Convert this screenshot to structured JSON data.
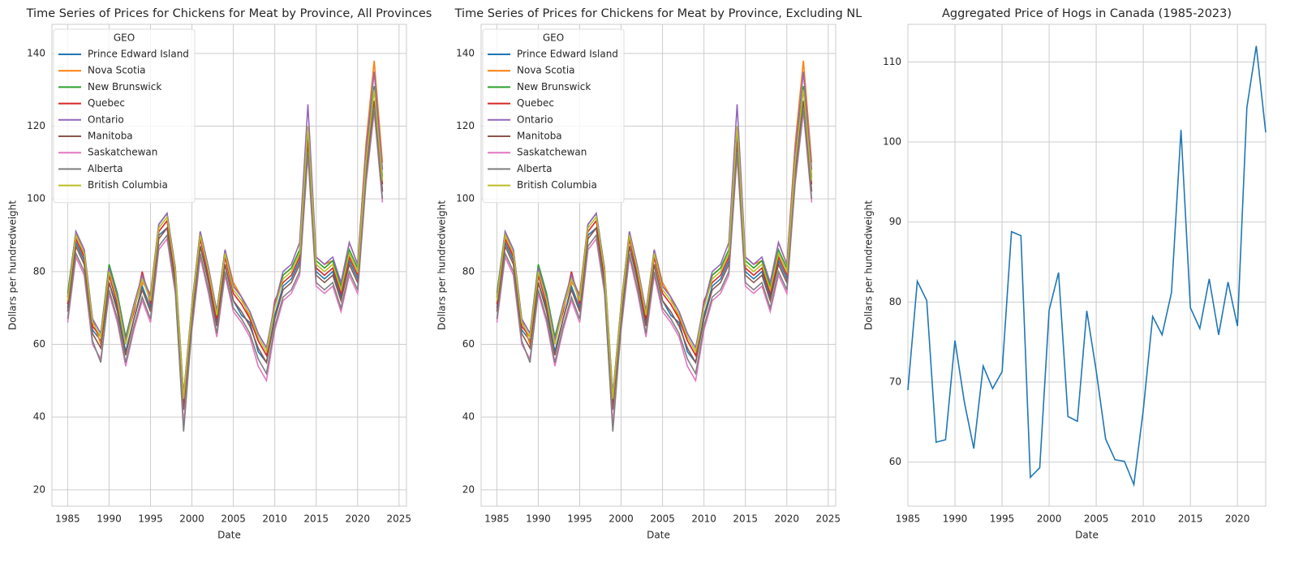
{
  "chart_data": [
    {
      "type": "line",
      "title": "Time Series of Prices for Chickens for Meat by Province, All Provinces",
      "x_label": "Date",
      "y_label": "Dollars per hundredweight",
      "legend_title": "GEO",
      "legend": "upper left",
      "grid": true,
      "x": [
        1985,
        1986,
        1987,
        1988,
        1989,
        1990,
        1991,
        1992,
        1993,
        1994,
        1995,
        1996,
        1997,
        1998,
        1999,
        2000,
        2001,
        2002,
        2003,
        2004,
        2005,
        2006,
        2007,
        2008,
        2009,
        2010,
        2011,
        2012,
        2013,
        2014,
        2015,
        2016,
        2017,
        2018,
        2019,
        2020,
        2021,
        2022,
        2023
      ],
      "xlim": [
        1983.1,
        2025.9
      ],
      "xticks": [
        1985,
        1990,
        1995,
        2000,
        2005,
        2010,
        2015,
        2020,
        2025
      ],
      "ylim": [
        15.5,
        148
      ],
      "yticks": [
        20,
        40,
        60,
        80,
        100,
        120,
        140
      ],
      "series": [
        {
          "name": "Prince Edward Island",
          "color": "#1f77b4",
          "values": [
            70,
            88,
            83,
            64,
            61,
            77,
            70,
            58,
            67,
            76,
            70,
            90,
            92,
            78,
            42,
            68,
            87,
            78,
            66,
            82,
            72,
            68,
            66,
            58,
            55,
            68,
            76,
            78,
            83,
            115,
            80,
            78,
            80,
            73,
            83,
            78,
            106,
            125,
            102
          ]
        },
        {
          "name": "Nova Scotia",
          "color": "#ff7f0e",
          "values": [
            73,
            91,
            84,
            67,
            60,
            79,
            73,
            61,
            70,
            77,
            74,
            93,
            96,
            79,
            44,
            71,
            91,
            81,
            69,
            86,
            77,
            73,
            67,
            61,
            57,
            71,
            79,
            81,
            86,
            118,
            84,
            82,
            83,
            77,
            88,
            82,
            115,
            138,
            110
          ]
        },
        {
          "name": "New Brunswick",
          "color": "#2ca02c",
          "values": [
            74,
            91,
            86,
            67,
            63,
            82,
            74,
            62,
            71,
            79,
            73,
            93,
            96,
            81,
            46,
            71,
            91,
            81,
            69,
            86,
            76,
            73,
            69,
            63,
            59,
            71,
            79,
            81,
            86,
            117,
            83,
            81,
            83,
            76,
            86,
            81,
            111,
            131,
            106
          ]
        },
        {
          "name": "Quebec",
          "color": "#d62728",
          "values": [
            71,
            89,
            84,
            65,
            62,
            79,
            71,
            61,
            69,
            80,
            71,
            91,
            94,
            79,
            44,
            69,
            89,
            79,
            67,
            84,
            74,
            71,
            67,
            61,
            57,
            72,
            77,
            79,
            84,
            116,
            81,
            79,
            81,
            74,
            84,
            79,
            112,
            127,
            104
          ]
        },
        {
          "name": "Ontario",
          "color": "#9467bd",
          "values": [
            73,
            91,
            86,
            67,
            63,
            81,
            73,
            61,
            71,
            79,
            73,
            93,
            96,
            81,
            46,
            71,
            91,
            81,
            69,
            86,
            76,
            73,
            69,
            63,
            59,
            71,
            80,
            82,
            88,
            126,
            84,
            82,
            84,
            77,
            88,
            82,
            113,
            135,
            108
          ]
        },
        {
          "name": "Manitoba",
          "color": "#8c564b",
          "values": [
            69,
            87,
            82,
            63,
            59,
            77,
            69,
            57,
            67,
            75,
            69,
            89,
            92,
            77,
            42,
            67,
            87,
            77,
            65,
            82,
            72,
            69,
            65,
            59,
            55,
            67,
            75,
            77,
            82,
            116,
            79,
            77,
            79,
            72,
            82,
            77,
            107,
            127,
            102
          ]
        },
        {
          "name": "Saskatchewan",
          "color": "#e377c2",
          "values": [
            66,
            84,
            79,
            60,
            56,
            74,
            66,
            54,
            64,
            72,
            66,
            86,
            89,
            74,
            38,
            64,
            84,
            74,
            62,
            79,
            69,
            66,
            62,
            54,
            50,
            64,
            72,
            74,
            79,
            112,
            76,
            74,
            76,
            69,
            79,
            74,
            104,
            124,
            99
          ]
        },
        {
          "name": "Alberta",
          "color": "#7f7f7f",
          "values": [
            67,
            85,
            80,
            61,
            55,
            75,
            67,
            55,
            65,
            73,
            67,
            87,
            90,
            75,
            36,
            65,
            85,
            75,
            63,
            80,
            70,
            67,
            63,
            56,
            52,
            65,
            73,
            75,
            80,
            113,
            77,
            75,
            77,
            70,
            80,
            75,
            105,
            125,
            100
          ]
        },
        {
          "name": "British Columbia",
          "color": "#bcbd22",
          "values": [
            72,
            90,
            85,
            66,
            62,
            80,
            72,
            60,
            70,
            78,
            72,
            92,
            95,
            80,
            45,
            70,
            90,
            80,
            68,
            85,
            75,
            72,
            68,
            62,
            58,
            70,
            78,
            80,
            85,
            120,
            82,
            80,
            82,
            75,
            85,
            80,
            110,
            130,
            105
          ]
        }
      ]
    },
    {
      "type": "line",
      "title": "Time Series of Prices for Chickens for Meat by Province, Excluding NL",
      "x_label": "Date",
      "y_label": "Dollars per hundredweight",
      "legend_title": "GEO",
      "legend": "upper left",
      "grid": true,
      "x": [
        1985,
        1986,
        1987,
        1988,
        1989,
        1990,
        1991,
        1992,
        1993,
        1994,
        1995,
        1996,
        1997,
        1998,
        1999,
        2000,
        2001,
        2002,
        2003,
        2004,
        2005,
        2006,
        2007,
        2008,
        2009,
        2010,
        2011,
        2012,
        2013,
        2014,
        2015,
        2016,
        2017,
        2018,
        2019,
        2020,
        2021,
        2022,
        2023
      ],
      "xlim": [
        1983.1,
        2025.9
      ],
      "xticks": [
        1985,
        1990,
        1995,
        2000,
        2005,
        2010,
        2015,
        2020,
        2025
      ],
      "ylim": [
        15.5,
        148
      ],
      "yticks": [
        20,
        40,
        60,
        80,
        100,
        120,
        140
      ],
      "series": [
        {
          "name": "Prince Edward Island",
          "color": "#1f77b4",
          "values": [
            70,
            88,
            83,
            64,
            61,
            77,
            70,
            58,
            67,
            76,
            70,
            90,
            92,
            78,
            42,
            68,
            87,
            78,
            66,
            82,
            72,
            68,
            66,
            58,
            55,
            68,
            76,
            78,
            83,
            115,
            80,
            78,
            80,
            73,
            83,
            78,
            106,
            125,
            102
          ]
        },
        {
          "name": "Nova Scotia",
          "color": "#ff7f0e",
          "values": [
            73,
            91,
            84,
            67,
            60,
            79,
            73,
            61,
            70,
            77,
            74,
            93,
            96,
            79,
            44,
            71,
            91,
            81,
            69,
            86,
            77,
            73,
            67,
            61,
            57,
            71,
            79,
            81,
            86,
            118,
            84,
            82,
            83,
            77,
            88,
            82,
            115,
            138,
            110
          ]
        },
        {
          "name": "New Brunswick",
          "color": "#2ca02c",
          "values": [
            74,
            91,
            86,
            67,
            63,
            82,
            74,
            62,
            71,
            79,
            73,
            93,
            96,
            81,
            46,
            71,
            91,
            81,
            69,
            86,
            76,
            73,
            69,
            63,
            59,
            71,
            79,
            81,
            86,
            117,
            83,
            81,
            83,
            76,
            86,
            81,
            111,
            131,
            106
          ]
        },
        {
          "name": "Quebec",
          "color": "#d62728",
          "values": [
            71,
            89,
            84,
            65,
            62,
            79,
            71,
            61,
            69,
            80,
            71,
            91,
            94,
            79,
            44,
            69,
            89,
            79,
            67,
            84,
            74,
            71,
            67,
            61,
            57,
            72,
            77,
            79,
            84,
            116,
            81,
            79,
            81,
            74,
            84,
            79,
            112,
            127,
            104
          ]
        },
        {
          "name": "Ontario",
          "color": "#9467bd",
          "values": [
            73,
            91,
            86,
            67,
            63,
            81,
            73,
            61,
            71,
            79,
            73,
            93,
            96,
            81,
            46,
            71,
            91,
            81,
            69,
            86,
            76,
            73,
            69,
            63,
            59,
            71,
            80,
            82,
            88,
            126,
            84,
            82,
            84,
            77,
            88,
            82,
            113,
            135,
            108
          ]
        },
        {
          "name": "Manitoba",
          "color": "#8c564b",
          "values": [
            69,
            87,
            82,
            63,
            59,
            77,
            69,
            57,
            67,
            75,
            69,
            89,
            92,
            77,
            42,
            67,
            87,
            77,
            65,
            82,
            72,
            69,
            65,
            59,
            55,
            67,
            75,
            77,
            82,
            116,
            79,
            77,
            79,
            72,
            82,
            77,
            107,
            127,
            102
          ]
        },
        {
          "name": "Saskatchewan",
          "color": "#e377c2",
          "values": [
            66,
            84,
            79,
            60,
            56,
            74,
            66,
            54,
            64,
            72,
            66,
            86,
            89,
            74,
            38,
            64,
            84,
            74,
            62,
            79,
            69,
            66,
            62,
            54,
            50,
            64,
            72,
            74,
            79,
            112,
            76,
            74,
            76,
            69,
            79,
            74,
            104,
            124,
            99
          ]
        },
        {
          "name": "Alberta",
          "color": "#7f7f7f",
          "values": [
            67,
            85,
            80,
            61,
            55,
            75,
            67,
            55,
            65,
            73,
            67,
            87,
            90,
            75,
            36,
            65,
            85,
            75,
            63,
            80,
            70,
            67,
            63,
            56,
            52,
            65,
            73,
            75,
            80,
            113,
            77,
            75,
            77,
            70,
            80,
            75,
            105,
            125,
            100
          ]
        },
        {
          "name": "British Columbia",
          "color": "#bcbd22",
          "values": [
            72,
            90,
            85,
            66,
            62,
            80,
            72,
            60,
            70,
            78,
            72,
            92,
            95,
            80,
            45,
            70,
            90,
            80,
            68,
            85,
            75,
            72,
            68,
            62,
            58,
            70,
            78,
            80,
            85,
            120,
            82,
            80,
            82,
            75,
            85,
            80,
            110,
            130,
            105
          ]
        }
      ]
    },
    {
      "type": "line",
      "title": "Aggregated Price of Hogs in Canada (1985-2023)",
      "x_label": "Date",
      "y_label": "Dollars per hundredweight",
      "grid": true,
      "x": [
        1985,
        1986,
        1987,
        1988,
        1989,
        1990,
        1991,
        1992,
        1993,
        1994,
        1995,
        1996,
        1997,
        1998,
        1999,
        2000,
        2001,
        2002,
        2003,
        2004,
        2005,
        2006,
        2007,
        2008,
        2009,
        2010,
        2011,
        2012,
        2013,
        2014,
        2015,
        2016,
        2017,
        2018,
        2019,
        2020,
        2021,
        2022,
        2023
      ],
      "xlim": [
        1985,
        2023
      ],
      "xticks": [
        1985,
        1990,
        1995,
        2000,
        2005,
        2010,
        2015,
        2020
      ],
      "ylim": [
        54.5,
        114.7
      ],
      "yticks": [
        60,
        70,
        80,
        90,
        100,
        110
      ],
      "series": [
        {
          "color": "#1f77b4",
          "values": [
            69,
            82.6,
            80.2,
            62.5,
            62.8,
            75.2,
            67.5,
            61.7,
            72,
            69.2,
            71.3,
            88.8,
            88.3,
            58.1,
            59.3,
            79,
            83.7,
            65.7,
            65.1,
            78.9,
            71.4,
            62.9,
            60.3,
            60.1,
            57.2,
            66.5,
            78.2,
            75.9,
            81.2,
            101.5,
            79.3,
            76.7,
            82.9,
            75.9,
            82.5,
            77,
            104.3,
            112,
            101.2
          ]
        }
      ]
    }
  ]
}
